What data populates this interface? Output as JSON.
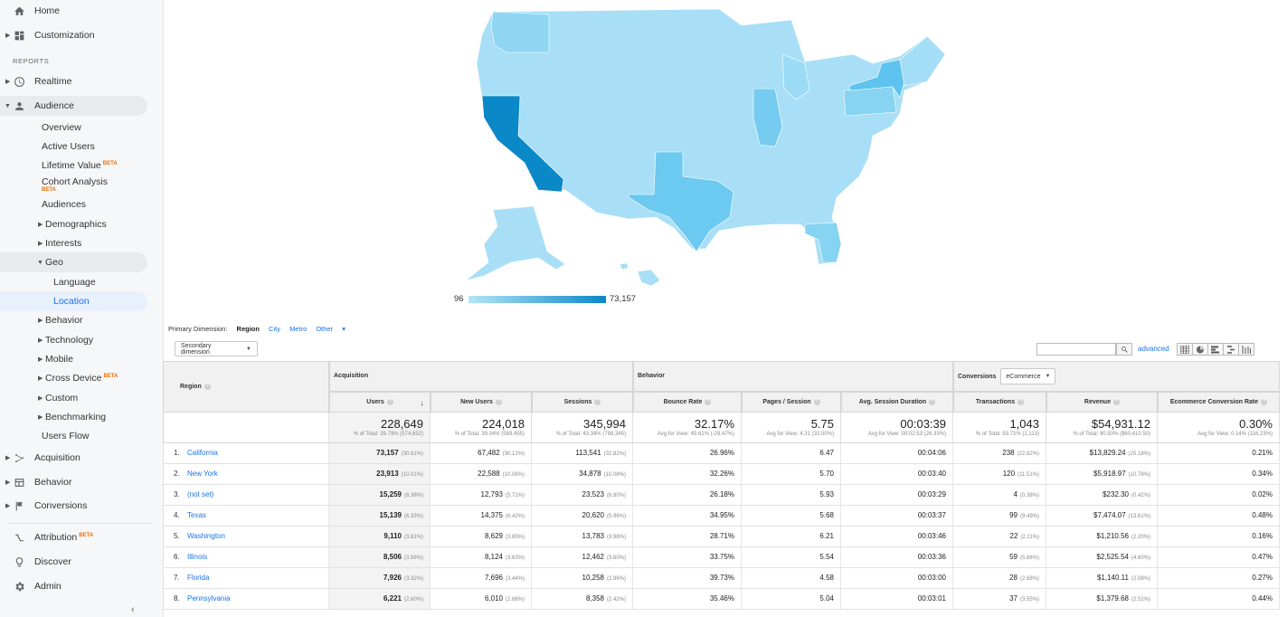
{
  "sidebar": {
    "home": "Home",
    "customization": "Customization",
    "reports_header": "REPORTS",
    "realtime": "Realtime",
    "audience": "Audience",
    "audience_items": {
      "overview": "Overview",
      "active_users": "Active Users",
      "lifetime_value": "Lifetime Value",
      "cohort_analysis": "Cohort Analysis",
      "audiences": "Audiences",
      "demographics": "Demographics",
      "interests": "Interests",
      "geo": "Geo",
      "language": "Language",
      "location": "Location",
      "behavior": "Behavior",
      "technology": "Technology",
      "mobile": "Mobile",
      "cross_device": "Cross Device",
      "custom": "Custom",
      "benchmarking": "Benchmarking",
      "users_flow": "Users Flow"
    },
    "acquisition": "Acquisition",
    "behavior": "Behavior",
    "conversions": "Conversions",
    "attribution": "Attribution",
    "discover": "Discover",
    "admin": "Admin",
    "beta_label": "BETA",
    "collapse_glyph": "‹"
  },
  "map": {
    "legend_min": "96",
    "legend_max": "73,157",
    "color_low": "#b3e5f8",
    "color_high": "#0a88c7"
  },
  "controls": {
    "primary_dimension_label": "Primary Dimension:",
    "dimension_region": "Region",
    "dimension_city": "City",
    "dimension_metro": "Metro",
    "dimension_other": "Other",
    "secondary_dimension": "Secondary dimension",
    "advanced": "advanced",
    "conversions_select": "eCommerce"
  },
  "table": {
    "region_header": "Region",
    "group_acquisition": "Acquisition",
    "group_behavior": "Behavior",
    "group_conversions": "Conversions",
    "columns": [
      "Users",
      "New Users",
      "Sessions",
      "Bounce Rate",
      "Pages / Session",
      "Avg. Session Duration",
      "Transactions",
      "Revenue",
      "Ecommerce Conversion Rate"
    ],
    "totals": [
      {
        "value": "228,649",
        "sub": "% of Total: 39.79% (574,652)"
      },
      {
        "value": "224,018",
        "sub": "% of Total: 39.34% (569,455)"
      },
      {
        "value": "345,994",
        "sub": "% of Total: 43.34% (798,345)"
      },
      {
        "value": "32.17%",
        "sub": "Avg for View: 45.61% (-29.47%)"
      },
      {
        "value": "5.75",
        "sub": "Avg for View: 4.31 (33.50%)"
      },
      {
        "value": "00:03:39",
        "sub": "Avg for View: 00:02:53 (26.33%)"
      },
      {
        "value": "1,043",
        "sub": "% of Total: 93.71% (1,113)"
      },
      {
        "value": "$54,931.12",
        "sub": "% of Total: 90.93% ($60,410.50)"
      },
      {
        "value": "0.30%",
        "sub": "Avg for View: 0.14% (116.23%)"
      }
    ],
    "rows": [
      {
        "num": "1.",
        "region": "California",
        "users": "73,157",
        "users_pct": "(30.61%)",
        "new_users": "67,482",
        "new_users_pct": "(30.12%)",
        "sessions": "113,541",
        "sessions_pct": "(32.82%)",
        "bounce": "26.96%",
        "pps": "6.47",
        "duration": "00:04:06",
        "transactions": "238",
        "transactions_pct": "(22.82%)",
        "revenue": "$13,829.24",
        "revenue_pct": "(25.18%)",
        "conv": "0.21%"
      },
      {
        "num": "2.",
        "region": "New York",
        "users": "23,913",
        "users_pct": "(10.01%)",
        "new_users": "22,588",
        "new_users_pct": "(10.08%)",
        "sessions": "34,878",
        "sessions_pct": "(10.08%)",
        "bounce": "32.26%",
        "pps": "5.70",
        "duration": "00:03:40",
        "transactions": "120",
        "transactions_pct": "(11.51%)",
        "revenue": "$5,918.97",
        "revenue_pct": "(10.78%)",
        "conv": "0.34%"
      },
      {
        "num": "3.",
        "region": "(not set)",
        "users": "15,259",
        "users_pct": "(6.38%)",
        "new_users": "12,793",
        "new_users_pct": "(5.71%)",
        "sessions": "23,523",
        "sessions_pct": "(6.80%)",
        "bounce": "26.18%",
        "pps": "5.93",
        "duration": "00:03:29",
        "transactions": "4",
        "transactions_pct": "(0.38%)",
        "revenue": "$232.30",
        "revenue_pct": "(0.42%)",
        "conv": "0.02%"
      },
      {
        "num": "4.",
        "region": "Texas",
        "users": "15,139",
        "users_pct": "(6.33%)",
        "new_users": "14,375",
        "new_users_pct": "(6.42%)",
        "sessions": "20,620",
        "sessions_pct": "(5.96%)",
        "bounce": "34.95%",
        "pps": "5.68",
        "duration": "00:03:37",
        "transactions": "99",
        "transactions_pct": "(9.49%)",
        "revenue": "$7,474.07",
        "revenue_pct": "(13.61%)",
        "conv": "0.48%"
      },
      {
        "num": "5.",
        "region": "Washington",
        "users": "9,110",
        "users_pct": "(3.81%)",
        "new_users": "8,629",
        "new_users_pct": "(3.85%)",
        "sessions": "13,783",
        "sessions_pct": "(3.98%)",
        "bounce": "28.71%",
        "pps": "6.21",
        "duration": "00:03:46",
        "transactions": "22",
        "transactions_pct": "(2.11%)",
        "revenue": "$1,210.56",
        "revenue_pct": "(2.20%)",
        "conv": "0.16%"
      },
      {
        "num": "6.",
        "region": "Illinois",
        "users": "8,506",
        "users_pct": "(3.56%)",
        "new_users": "8,124",
        "new_users_pct": "(3.63%)",
        "sessions": "12,462",
        "sessions_pct": "(3.60%)",
        "bounce": "33.75%",
        "pps": "5.54",
        "duration": "00:03:36",
        "transactions": "59",
        "transactions_pct": "(5.66%)",
        "revenue": "$2,525.54",
        "revenue_pct": "(4.60%)",
        "conv": "0.47%"
      },
      {
        "num": "7.",
        "region": "Florida",
        "users": "7,926",
        "users_pct": "(3.32%)",
        "new_users": "7,696",
        "new_users_pct": "(3.44%)",
        "sessions": "10,258",
        "sessions_pct": "(2.96%)",
        "bounce": "39.73%",
        "pps": "4.58",
        "duration": "00:03:00",
        "transactions": "28",
        "transactions_pct": "(2.68%)",
        "revenue": "$1,140.11",
        "revenue_pct": "(2.08%)",
        "conv": "0.27%"
      },
      {
        "num": "8.",
        "region": "Pennsylvania",
        "users": "6,221",
        "users_pct": "(2.60%)",
        "new_users": "6,010",
        "new_users_pct": "(2.68%)",
        "sessions": "8,358",
        "sessions_pct": "(2.42%)",
        "bounce": "35.46%",
        "pps": "5.04",
        "duration": "00:03:01",
        "transactions": "37",
        "transactions_pct": "(3.55%)",
        "revenue": "$1,379.68",
        "revenue_pct": "(2.51%)",
        "conv": "0.44%"
      }
    ]
  }
}
